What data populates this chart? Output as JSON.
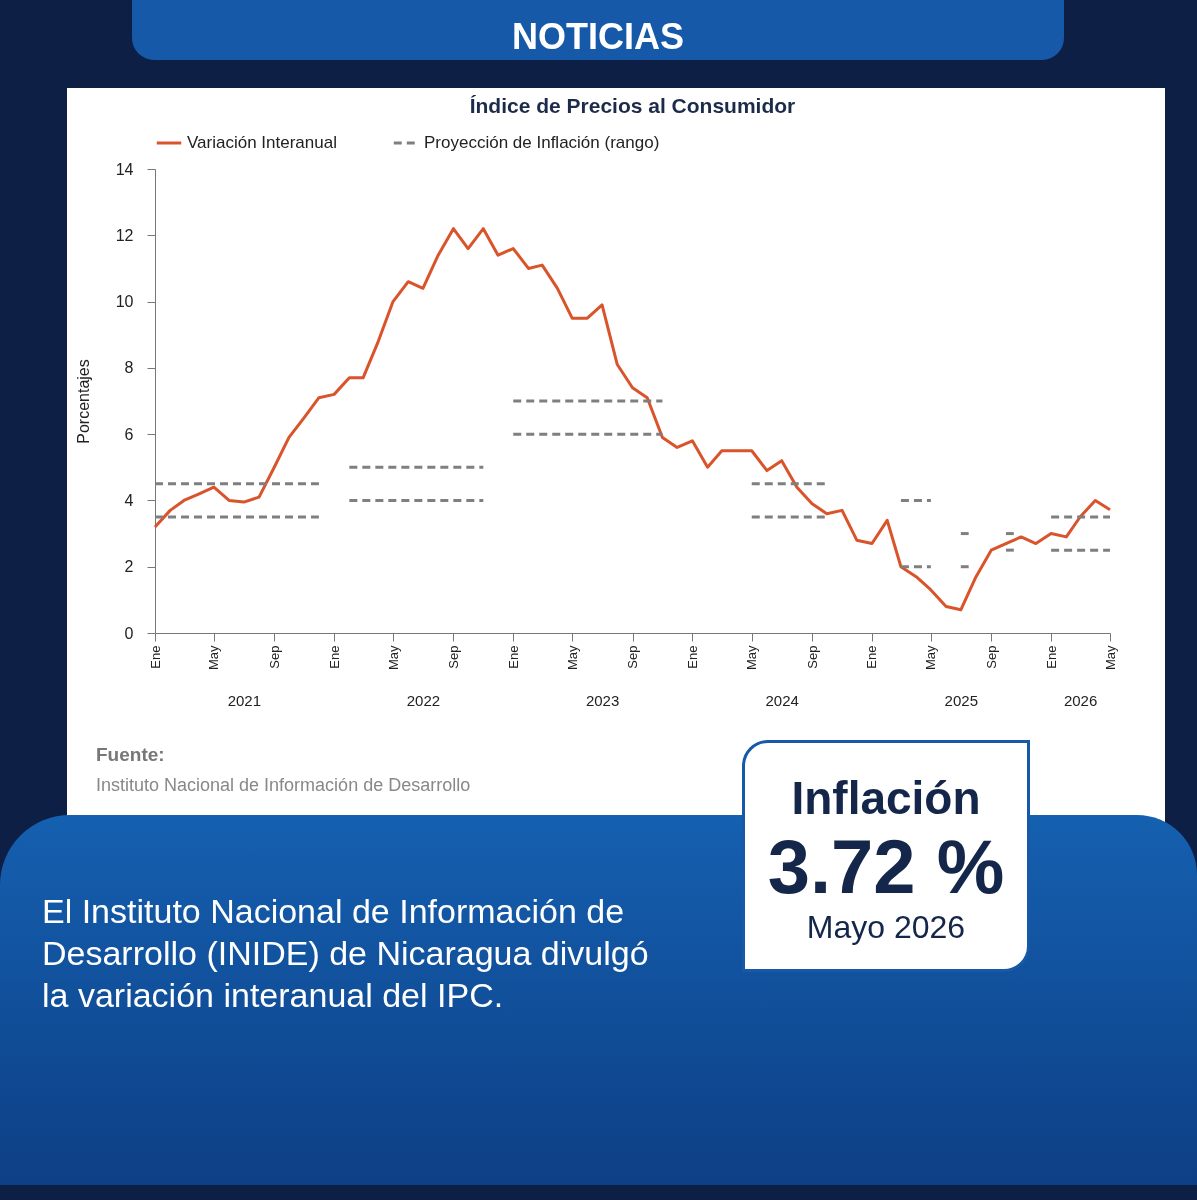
{
  "chart_data": {
    "type": "line",
    "title": "Índice de Precios al Consumidor",
    "ylabel": "Porcentajes",
    "x": [
      "2021-01",
      "2021-02",
      "2021-03",
      "2021-04",
      "2021-05",
      "2021-06",
      "2021-07",
      "2021-08",
      "2021-09",
      "2021-10",
      "2021-11",
      "2021-12",
      "2022-01",
      "2022-02",
      "2022-03",
      "2022-04",
      "2022-05",
      "2022-06",
      "2022-07",
      "2022-08",
      "2022-09",
      "2022-10",
      "2022-11",
      "2022-12",
      "2023-01",
      "2023-02",
      "2023-03",
      "2023-04",
      "2023-05",
      "2023-06",
      "2023-07",
      "2023-08",
      "2023-09",
      "2023-10",
      "2023-11",
      "2023-12",
      "2024-01",
      "2024-02",
      "2024-03",
      "2024-04",
      "2024-05",
      "2024-06",
      "2024-07",
      "2024-08",
      "2024-09",
      "2024-10",
      "2024-11",
      "2024-12",
      "2025-01",
      "2025-02",
      "2025-03",
      "2025-04",
      "2025-05",
      "2025-06",
      "2025-07",
      "2025-08",
      "2025-09",
      "2025-10",
      "2025-11",
      "2025-12",
      "2026-01",
      "2026-02",
      "2026-03",
      "2026-04",
      "2026-05"
    ],
    "series": [
      {
        "name": "Variación Interanual",
        "color": "#d9532b",
        "line_style": "solid",
        "values": [
          3.2,
          3.7,
          4.0,
          4.2,
          4.4,
          4.0,
          3.95,
          4.1,
          5.0,
          5.9,
          6.5,
          7.1,
          7.2,
          7.7,
          7.7,
          8.8,
          10.0,
          10.6,
          10.4,
          11.4,
          12.2,
          11.6,
          12.2,
          11.4,
          11.6,
          11.0,
          11.1,
          10.4,
          9.5,
          9.5,
          9.9,
          8.1,
          7.4,
          7.1,
          5.9,
          5.6,
          5.8,
          5.0,
          5.5,
          5.5,
          5.5,
          4.9,
          5.2,
          4.4,
          3.9,
          3.6,
          3.7,
          2.8,
          2.7,
          3.4,
          2.0,
          1.7,
          1.3,
          0.8,
          0.7,
          1.7,
          2.5,
          2.7,
          2.9,
          2.7,
          3.0,
          2.9,
          3.5,
          4.0,
          3.72
        ]
      },
      {
        "name": "Proyección de Inflación (rango)",
        "color": "#7f7f7f",
        "line_style": "dashed",
        "x": [
          "2021-01",
          "2021-12"
        ],
        "values": [
          4.5,
          4.5
        ]
      },
      {
        "color": "#7f7f7f",
        "line_style": "dashed",
        "x": [
          "2021-01",
          "2021-12"
        ],
        "values": [
          3.5,
          3.5
        ]
      },
      {
        "color": "#7f7f7f",
        "line_style": "dashed",
        "x": [
          "2022-02",
          "2022-11"
        ],
        "values": [
          5,
          5
        ]
      },
      {
        "color": "#7f7f7f",
        "line_style": "dashed",
        "x": [
          "2022-02",
          "2022-11"
        ],
        "values": [
          4,
          4
        ]
      },
      {
        "color": "#7f7f7f",
        "line_style": "dashed",
        "x": [
          "2023-01",
          "2023-11"
        ],
        "values": [
          7,
          7
        ]
      },
      {
        "color": "#7f7f7f",
        "line_style": "dashed",
        "x": [
          "2023-01",
          "2023-11"
        ],
        "values": [
          6,
          6
        ]
      },
      {
        "color": "#7f7f7f",
        "line_style": "dashed",
        "x": [
          "2024-05",
          "2024-10"
        ],
        "values": [
          4.5,
          4.5
        ]
      },
      {
        "color": "#7f7f7f",
        "line_style": "dashed",
        "x": [
          "2024-05",
          "2024-10"
        ],
        "values": [
          3.5,
          3.5
        ]
      },
      {
        "color": "#7f7f7f",
        "line_style": "dashed",
        "x": [
          "2025-03",
          "2025-05"
        ],
        "values": [
          4,
          4
        ]
      },
      {
        "color": "#7f7f7f",
        "line_style": "dashed",
        "x": [
          "2025-03",
          "2025-05"
        ],
        "values": [
          2,
          2
        ]
      },
      {
        "color": "#7f7f7f",
        "line_style": "dashed",
        "x": [
          "2025-07-01",
          "2025-07-17"
        ],
        "values": [
          3,
          3
        ]
      },
      {
        "color": "#7f7f7f",
        "line_style": "dashed",
        "x": [
          "2025-07-01",
          "2025-07-17"
        ],
        "values": [
          2,
          2
        ]
      },
      {
        "color": "#7f7f7f",
        "line_style": "dashed",
        "x": [
          "2025-10-01",
          "2025-10-17"
        ],
        "values": [
          3,
          3
        ]
      },
      {
        "color": "#7f7f7f",
        "line_style": "dashed",
        "x": [
          "2025-10-01",
          "2025-10-17"
        ],
        "values": [
          2.5,
          2.5
        ]
      },
      {
        "color": "#7f7f7f",
        "line_style": "dashed",
        "x": [
          "2026-01",
          "2026-05"
        ],
        "values": [
          3.5,
          3.5
        ]
      },
      {
        "color": "#7f7f7f",
        "line_style": "dashed",
        "x": [
          "2026-01",
          "2026-05"
        ],
        "values": [
          2.5,
          2.5
        ]
      }
    ],
    "xlim": [
      "2021-01",
      "2026-05"
    ],
    "xticks": [
      {
        "value": "2021-01",
        "label": "Ene"
      },
      {
        "value": "2021-05",
        "label": "May"
      },
      {
        "value": "2021-09",
        "label": "Sep"
      },
      {
        "value": "2022-01",
        "label": "Ene"
      },
      {
        "value": "2022-05",
        "label": "May"
      },
      {
        "value": "2022-09",
        "label": "Sep"
      },
      {
        "value": "2023-01",
        "label": "Ene"
      },
      {
        "value": "2023-05",
        "label": "May"
      },
      {
        "value": "2023-09",
        "label": "Sep"
      },
      {
        "value": "2024-01",
        "label": "Ene"
      },
      {
        "value": "2024-05",
        "label": "May"
      },
      {
        "value": "2024-09",
        "label": "Sep"
      },
      {
        "value": "2025-01",
        "label": "Ene"
      },
      {
        "value": "2025-05",
        "label": "May"
      },
      {
        "value": "2025-09",
        "label": "Sep"
      },
      {
        "value": "2026-01",
        "label": "Ene"
      },
      {
        "value": "2026-05",
        "label": "May"
      }
    ],
    "x2lim": [
      "2021-01",
      "2026-05"
    ],
    "x2ticks": [
      {
        "value": "2021-07",
        "label": "2021"
      },
      {
        "value": "2022-07",
        "label": "2022"
      },
      {
        "value": "2023-07",
        "label": "2023"
      },
      {
        "value": "2024-07",
        "label": "2024"
      },
      {
        "value": "2025-07",
        "label": "2025"
      },
      {
        "value": "2026-03",
        "label": "2026"
      }
    ],
    "ylim": [
      0,
      14
    ],
    "yticks": [
      0,
      2,
      4,
      6,
      8,
      10,
      12,
      14
    ],
    "grid": false,
    "legend": "top",
    "marker": "none",
    "annotations": [
      "NOTICIAS",
      "Fuente:",
      "Instituto Nacional de Información de Desarrollo",
      "El Instituto Nacional de Información de Desarrollo (INIDE) de Nicaragua divulgó la variación interanual del IPC.",
      "Inflación",
      "3.72 %",
      "Mayo 2026"
    ]
  }
}
